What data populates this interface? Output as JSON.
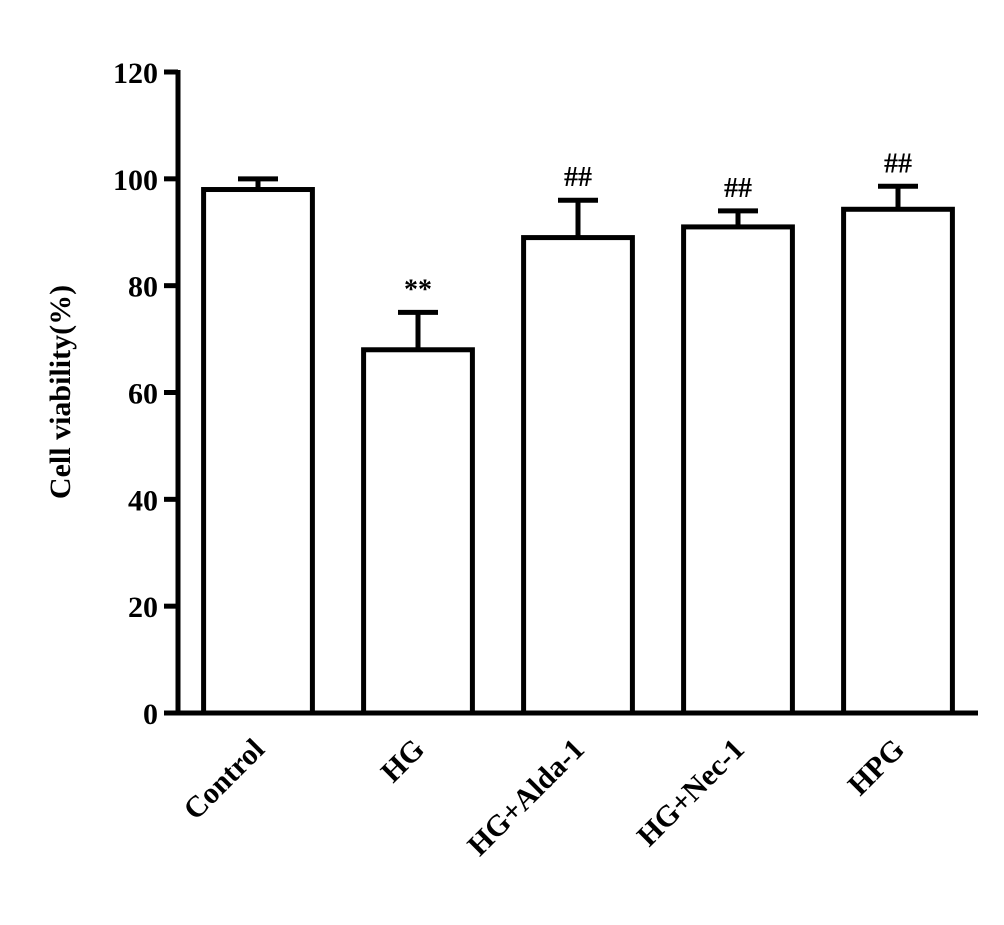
{
  "chart_data": {
    "type": "bar",
    "y_label": "Cell viability(%)",
    "categories": [
      "Control",
      "HG",
      "HG+Alda-1",
      "HG+Nec-1",
      "HPG"
    ],
    "values": [
      98,
      68,
      89,
      91,
      94.3
    ],
    "errors": [
      2,
      7,
      7,
      3,
      4.3
    ],
    "annotations": [
      null,
      "**",
      "##",
      "##",
      "##"
    ],
    "color": "#ffffff",
    "ylim": [
      0,
      120
    ],
    "yticks": [
      0,
      20,
      40,
      60,
      80,
      100,
      120
    ],
    "grid": false
  }
}
